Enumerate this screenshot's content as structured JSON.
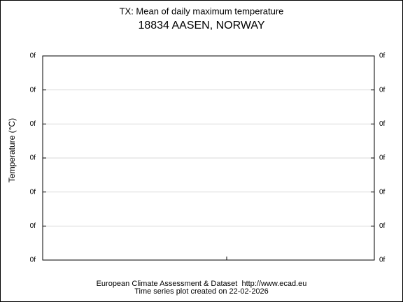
{
  "title": "TX: Mean of daily maximum temperature",
  "subtitle": "18834 AASEN, NORWAY",
  "y_axis_label": "Temperature (°C)",
  "left_tick_labels": [
    "0f",
    "0f",
    "0f",
    "0f",
    "0f",
    "0f",
    "0f"
  ],
  "right_tick_labels": [
    "0f",
    "0f",
    "0f",
    "0f",
    "0f",
    "0f",
    "0f"
  ],
  "footer": [
    "European Climate Assessment & Dataset  http://www.ecad.eu",
    "Time series plot created on 22-02-2026"
  ]
}
